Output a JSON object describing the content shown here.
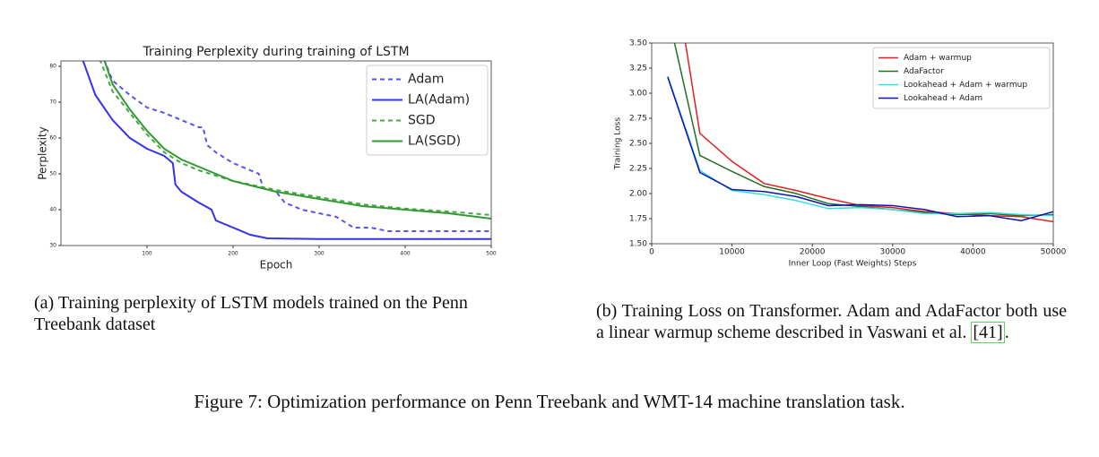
{
  "chart_data": [
    {
      "type": "line",
      "title": "Training Perplexity during training of LSTM",
      "x_label": "Epoch",
      "y_label": "Perplexity",
      "xlim": [
        0,
        500
      ],
      "ylim": [
        30,
        81.5
      ],
      "xticks": [
        100,
        200,
        300,
        400,
        500
      ],
      "yticks": [
        30,
        40,
        50,
        60,
        70,
        80
      ],
      "grid": false,
      "legend": "upper right",
      "series": [
        {
          "name": "Adam",
          "color": "#5555ee",
          "style": "dashed",
          "x": [
            50,
            60,
            80,
            100,
            120,
            140,
            160,
            165,
            170,
            180,
            200,
            220,
            230,
            235,
            250,
            260,
            280,
            300,
            320,
            340,
            360,
            380,
            400,
            450,
            500
          ],
          "values": [
            82,
            76,
            72,
            68.5,
            67,
            65,
            63,
            63,
            58,
            56,
            53,
            51,
            50,
            46,
            45,
            42,
            40,
            39,
            38,
            35,
            35,
            34,
            34,
            34,
            34
          ]
        },
        {
          "name": "LA(Adam)",
          "color": "#3333ee",
          "style": "solid",
          "x": [
            25,
            40,
            60,
            80,
            100,
            120,
            130,
            133,
            140,
            160,
            175,
            180,
            200,
            220,
            240,
            300,
            400,
            500
          ],
          "values": [
            82,
            72,
            65,
            60,
            57,
            55,
            53,
            47,
            45,
            42,
            40,
            37,
            35,
            33,
            32,
            31.8,
            31.8,
            31.8
          ]
        },
        {
          "name": "SGD",
          "color": "#44aa44",
          "style": "dashed",
          "x": [
            45,
            60,
            80,
            100,
            120,
            140,
            160,
            200,
            250,
            300,
            350,
            400,
            450,
            500
          ],
          "values": [
            82,
            73,
            67,
            61,
            56,
            53,
            51,
            48,
            45.5,
            43.5,
            41.5,
            40.3,
            39.5,
            38.5
          ]
        },
        {
          "name": "LA(SGD)",
          "color": "#339933",
          "style": "solid",
          "x": [
            50,
            60,
            80,
            100,
            120,
            140,
            160,
            200,
            250,
            300,
            350,
            400,
            450,
            500
          ],
          "values": [
            82,
            75,
            68,
            62,
            57,
            54,
            52,
            48,
            45,
            43,
            41,
            40,
            39,
            37.5
          ]
        }
      ]
    },
    {
      "type": "line",
      "x_label": "Inner Loop (Fast Weights) Steps",
      "y_label": "Training Loss",
      "xlim": [
        0,
        50000
      ],
      "ylim": [
        1.5,
        3.5
      ],
      "xticks": [
        0,
        10000,
        20000,
        30000,
        40000,
        50000
      ],
      "yticks": [
        {
          "value": 1.5,
          "label": "1.50"
        },
        {
          "value": 1.75,
          "label": "1.75"
        },
        {
          "value": 2,
          "label": "2.00"
        },
        {
          "value": 2.25,
          "label": "2.25"
        },
        {
          "value": 2.5,
          "label": "2.50"
        },
        {
          "value": 2.75,
          "label": "2.75"
        },
        {
          "value": 3,
          "label": "3.00"
        },
        {
          "value": 3.25,
          "label": "3.25"
        },
        {
          "value": 3.5,
          "label": "3.50"
        }
      ],
      "grid": false,
      "legend": "upper right",
      "x": [
        2000,
        6000,
        10000,
        14000,
        18000,
        22000,
        26000,
        30000,
        34000,
        38000,
        42000,
        46000,
        50000
      ],
      "series": [
        {
          "name": "Adam + warmup",
          "color": "#e02020",
          "style": "solid",
          "values": [
            4.6,
            2.6,
            2.32,
            2.1,
            2.03,
            1.95,
            1.88,
            1.86,
            1.82,
            1.8,
            1.78,
            1.77,
            1.72
          ]
        },
        {
          "name": "AdaFactor",
          "color": "#207020",
          "style": "solid",
          "values": [
            3.8,
            2.38,
            2.22,
            2.07,
            2.0,
            1.9,
            1.87,
            1.84,
            1.81,
            1.79,
            1.8,
            1.78,
            1.79
          ]
        },
        {
          "name": "Lookahead + Adam + warmup",
          "color": "#30e0e0",
          "style": "solid",
          "values": [
            3.17,
            2.23,
            2.03,
            1.99,
            1.93,
            1.85,
            1.86,
            1.84,
            1.8,
            1.8,
            1.81,
            1.79,
            1.78
          ]
        },
        {
          "name": "Lookahead + Adam",
          "color": "#1010b0",
          "style": "solid",
          "values": [
            3.16,
            2.21,
            2.04,
            2.02,
            1.97,
            1.88,
            1.89,
            1.88,
            1.84,
            1.77,
            1.78,
            1.73,
            1.82
          ]
        }
      ]
    }
  ],
  "captions": [
    "(a) Training perplexity of LSTM models trained on the Penn Treebank dataset",
    {
      "text": "(b) Training Loss on Transformer. Adam and AdaFactor both use a linear warmup scheme described in Vaswani et al. ",
      "citation": "[41]",
      "end": "."
    }
  ],
  "figure_caption": "Figure 7: Optimization performance on Penn Treebank and WMT-14 machine translation task."
}
